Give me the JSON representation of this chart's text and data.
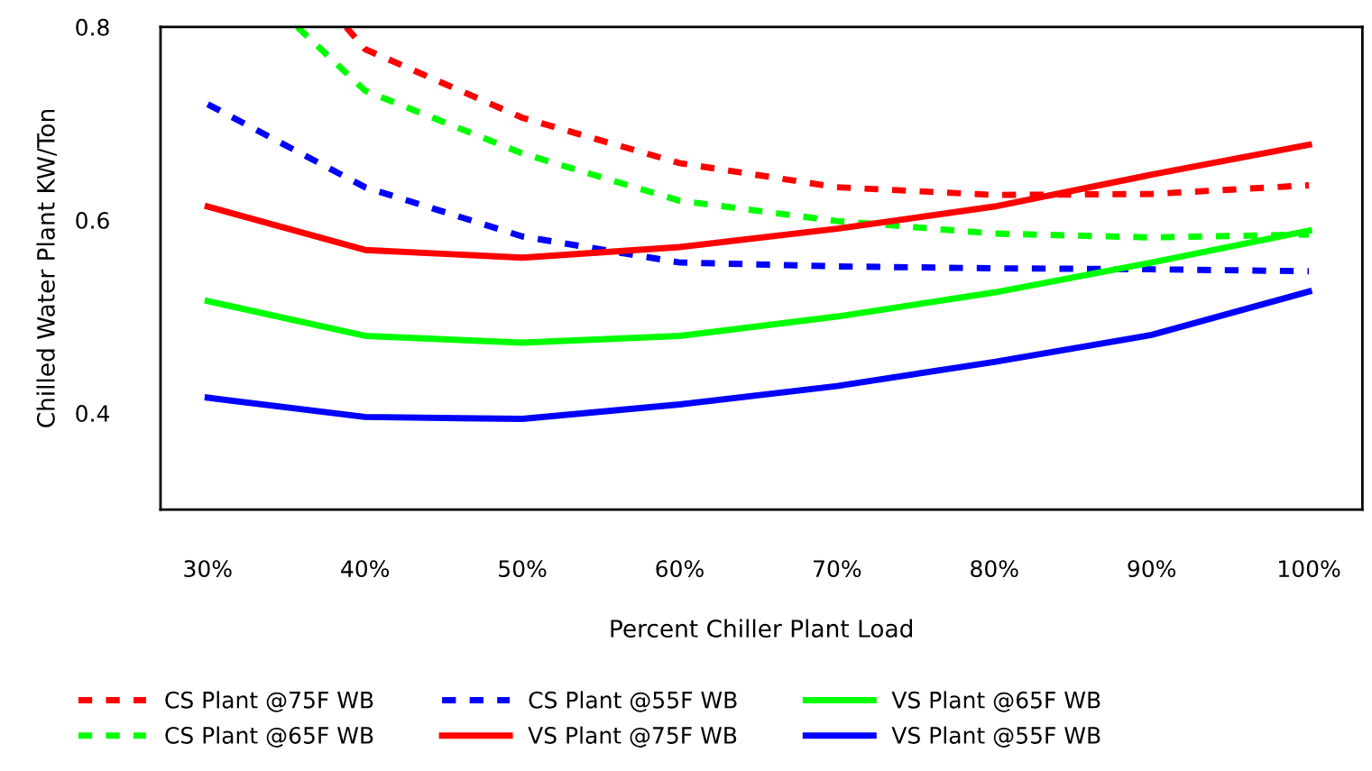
{
  "chart_data": {
    "type": "line",
    "xlabel": "Percent Chiller Plant Load",
    "ylabel": "Chilled Water Plant KW/Ton",
    "xlim": [
      27,
      103.4
    ],
    "ylim": [
      0.3,
      0.8
    ],
    "xticks": [
      {
        "value": 30,
        "label": "30%"
      },
      {
        "value": 40,
        "label": "40%"
      },
      {
        "value": 50,
        "label": "50%"
      },
      {
        "value": 60,
        "label": "60%"
      },
      {
        "value": 70,
        "label": "70%"
      },
      {
        "value": 80,
        "label": "80%"
      },
      {
        "value": 90,
        "label": "90%"
      },
      {
        "value": 100,
        "label": "100%"
      }
    ],
    "yticks": [
      {
        "value": 0.4,
        "label": "0.4"
      },
      {
        "value": 0.6,
        "label": "0.6"
      },
      {
        "value": 0.8,
        "label": "0.8"
      }
    ],
    "grid": false,
    "legend": "bottom",
    "marker": "none",
    "series": [
      {
        "name": "CS Plant @75F WB",
        "color": "#ff0000",
        "line_style": "dashed",
        "x": [
          38.8,
          40,
          50,
          60,
          70,
          80,
          90,
          100
        ],
        "values": [
          0.8,
          0.777,
          0.706,
          0.659,
          0.634,
          0.626,
          0.627,
          0.636
        ]
      },
      {
        "name": "CS Plant @65F WB",
        "color": "#00ff00",
        "line_style": "dashed",
        "x": [
          35.7,
          40,
          50,
          60,
          70,
          80,
          90,
          100
        ],
        "values": [
          0.8,
          0.734,
          0.669,
          0.62,
          0.599,
          0.586,
          0.582,
          0.585
        ]
      },
      {
        "name": "CS Plant @55F WB",
        "color": "#0000ff",
        "line_style": "dashed",
        "x": [
          30,
          40,
          50,
          60,
          70,
          80,
          90,
          100
        ],
        "values": [
          0.72,
          0.634,
          0.583,
          0.556,
          0.552,
          0.55,
          0.549,
          0.547
        ]
      },
      {
        "name": "VS Plant @75F WB",
        "color": "#ff0000",
        "line_style": "solid",
        "x": [
          30,
          40,
          50,
          60,
          70,
          80,
          90,
          100
        ],
        "values": [
          0.614,
          0.569,
          0.561,
          0.572,
          0.591,
          0.614,
          0.647,
          0.678
        ]
      },
      {
        "name": "VS Plant @65F WB",
        "color": "#00ff00",
        "line_style": "solid",
        "x": [
          30,
          40,
          50,
          60,
          70,
          80,
          90,
          100
        ],
        "values": [
          0.516,
          0.48,
          0.473,
          0.48,
          0.5,
          0.525,
          0.556,
          0.589
        ]
      },
      {
        "name": "VS Plant @55F WB",
        "color": "#0000ff",
        "line_style": "solid",
        "x": [
          30,
          40,
          50,
          60,
          70,
          80,
          90,
          100
        ],
        "values": [
          0.416,
          0.396,
          0.394,
          0.409,
          0.428,
          0.453,
          0.481,
          0.526
        ]
      }
    ]
  }
}
